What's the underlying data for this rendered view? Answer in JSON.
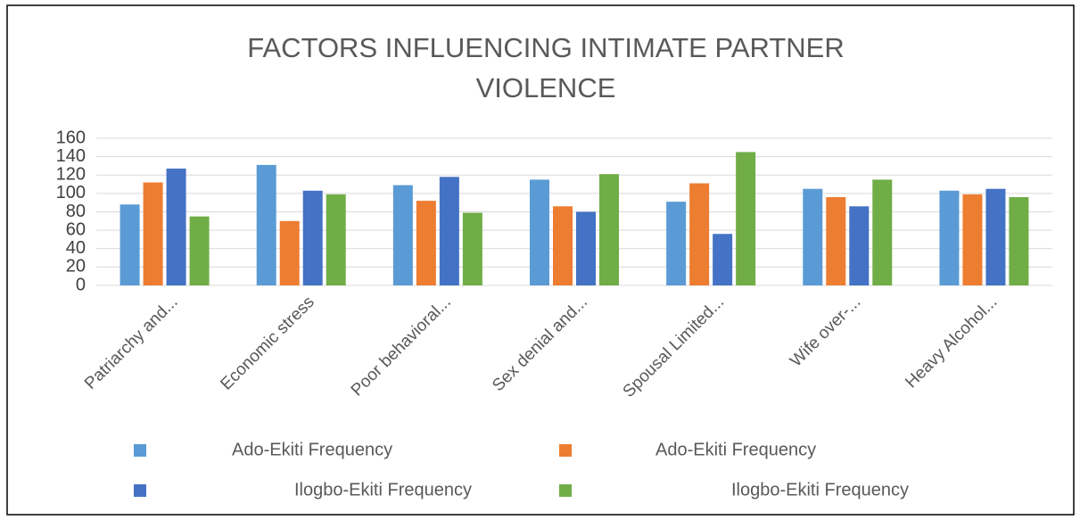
{
  "chart_data": {
    "type": "bar",
    "title": [
      "FACTORS  INFLUENCING INTIMATE PARTNER",
      "VIOLENCE"
    ],
    "categories": [
      "Patriarchy and...",
      "Economic stress",
      "Poor behavioral...",
      "Sex denial and...",
      "Spousal Limited...",
      "Wife over-...",
      "Heavy Alcohol..."
    ],
    "series": [
      {
        "name": "Ado-Ekiti Frequency",
        "color": "#5b9bd5",
        "values": [
          88,
          131,
          109,
          115,
          91,
          105,
          103
        ]
      },
      {
        "name": "Ado-Ekiti Frequency",
        "color": "#ed7d31",
        "values": [
          112,
          70,
          92,
          86,
          111,
          96,
          99
        ]
      },
      {
        "name": "Ilogbo-Ekiti Frequency",
        "color": "#4472c4",
        "values": [
          127,
          103,
          118,
          80,
          56,
          86,
          105
        ]
      },
      {
        "name": "Ilogbo-Ekiti Frequency",
        "color": "#70ad47",
        "values": [
          75,
          99,
          79,
          121,
          145,
          115,
          96
        ]
      }
    ],
    "ylim": [
      0,
      160
    ],
    "yticks": [
      0,
      20,
      40,
      60,
      80,
      100,
      120,
      140,
      160
    ],
    "grid": true,
    "legend": "bottom"
  }
}
